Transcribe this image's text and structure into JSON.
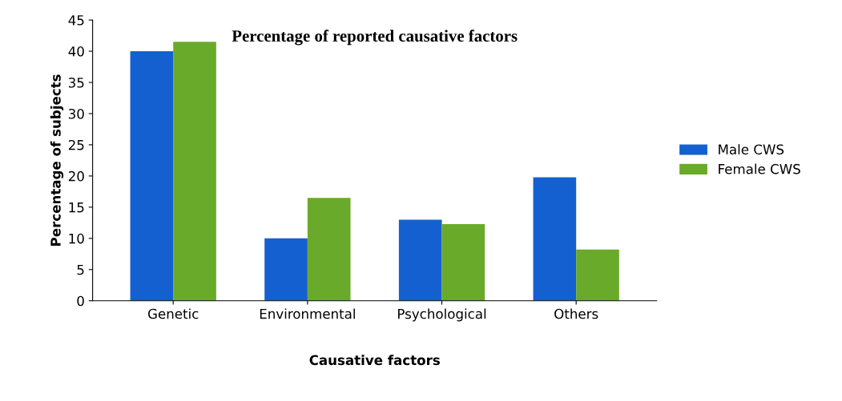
{
  "chart_data": {
    "type": "bar",
    "title": "Percentage of reported causative factors",
    "xlabel": "Causative factors",
    "ylabel": "Percentage of subjects",
    "categories": [
      "Genetic",
      "Environmental",
      "Psychological",
      "Others"
    ],
    "series": [
      {
        "name": "Male CWS",
        "color": "#1560d0",
        "values": [
          40,
          10,
          13,
          19.8
        ]
      },
      {
        "name": "Female CWS",
        "color": "#6aaa2a",
        "values": [
          41.5,
          16.5,
          12.3,
          8.2
        ]
      }
    ],
    "ylim": [
      0,
      45
    ],
    "yticks": [
      0,
      5,
      10,
      15,
      20,
      25,
      30,
      35,
      40,
      45
    ],
    "grid": false,
    "legend": "right"
  }
}
